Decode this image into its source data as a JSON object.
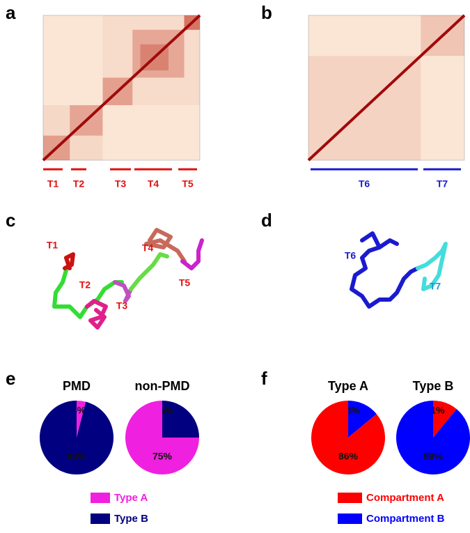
{
  "panel_letters": [
    "a",
    "b",
    "c",
    "d",
    "e",
    "f"
  ],
  "heatmap_domains": {
    "a": [
      "T1",
      "T2",
      "T3",
      "T4",
      "T5"
    ],
    "b": [
      "T6",
      "T7"
    ]
  },
  "structure_labels": {
    "c": [
      "T1",
      "T2",
      "T3",
      "T4",
      "T5"
    ],
    "d": [
      "T6",
      "T7"
    ]
  },
  "chart_data": [
    {
      "type": "pie",
      "categories": [
        "PMD",
        "non-PMD"
      ],
      "series": [
        {
          "name": "Type A",
          "color": "#f020e0",
          "values": [
            4,
            75
          ],
          "value_labels": [
            "4%",
            "75%"
          ]
        },
        {
          "name": "Type B",
          "color": "#000080",
          "values": [
            96,
            25
          ],
          "value_labels": [
            "96%",
            "25%"
          ]
        }
      ]
    },
    {
      "type": "pie",
      "categories": [
        "Type A",
        "Type B"
      ],
      "series": [
        {
          "name": "Compartment A",
          "color": "#ff0000",
          "values": [
            86,
            11
          ],
          "value_labels": [
            "86%",
            "11%"
          ]
        },
        {
          "name": "Compartment B",
          "color": "#0000ff",
          "values": [
            14,
            89
          ],
          "value_labels": [
            "14%",
            "89%"
          ]
        }
      ]
    }
  ]
}
